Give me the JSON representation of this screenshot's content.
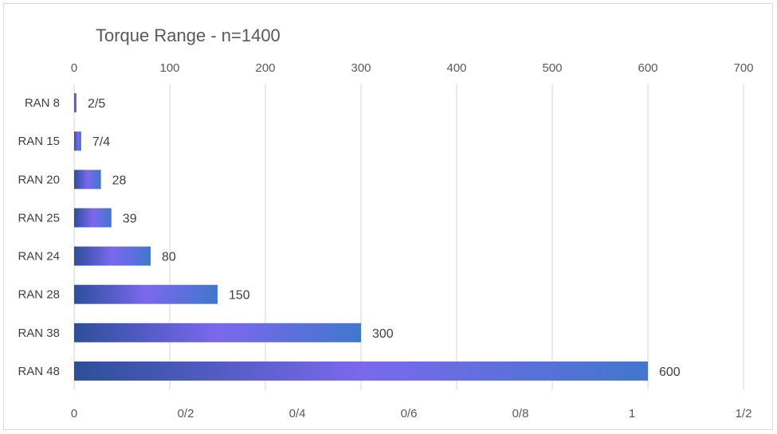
{
  "chart_data": {
    "type": "bar",
    "orientation": "horizontal",
    "title": "Torque Range - n=1400",
    "categories": [
      "RAN 8",
      "RAN 15",
      "RAN 20",
      "RAN 25",
      "RAN 24",
      "RAN 28",
      "RAN 38",
      "RAN 48"
    ],
    "values": [
      2.5,
      7.4,
      28,
      39,
      80,
      150,
      300,
      600
    ],
    "data_labels": [
      "2/5",
      "7/4",
      "28",
      "39",
      "80",
      "150",
      "300",
      "600"
    ],
    "top_axis": {
      "ticks": [
        "0",
        "100",
        "200",
        "300",
        "400",
        "500",
        "600",
        "700"
      ],
      "range": [
        0,
        700
      ]
    },
    "bottom_axis": {
      "ticks": [
        "0",
        "0/2",
        "0/4",
        "0/6",
        "0/8",
        "1",
        "1/2"
      ]
    },
    "grid": "vertical",
    "legend": "none",
    "colors": {
      "bar_start": "#2d4f9a",
      "bar_mid": "#7b68ee",
      "bar_end": "#4177cc",
      "grid": "#d9d9d9",
      "text": "#595959"
    }
  }
}
